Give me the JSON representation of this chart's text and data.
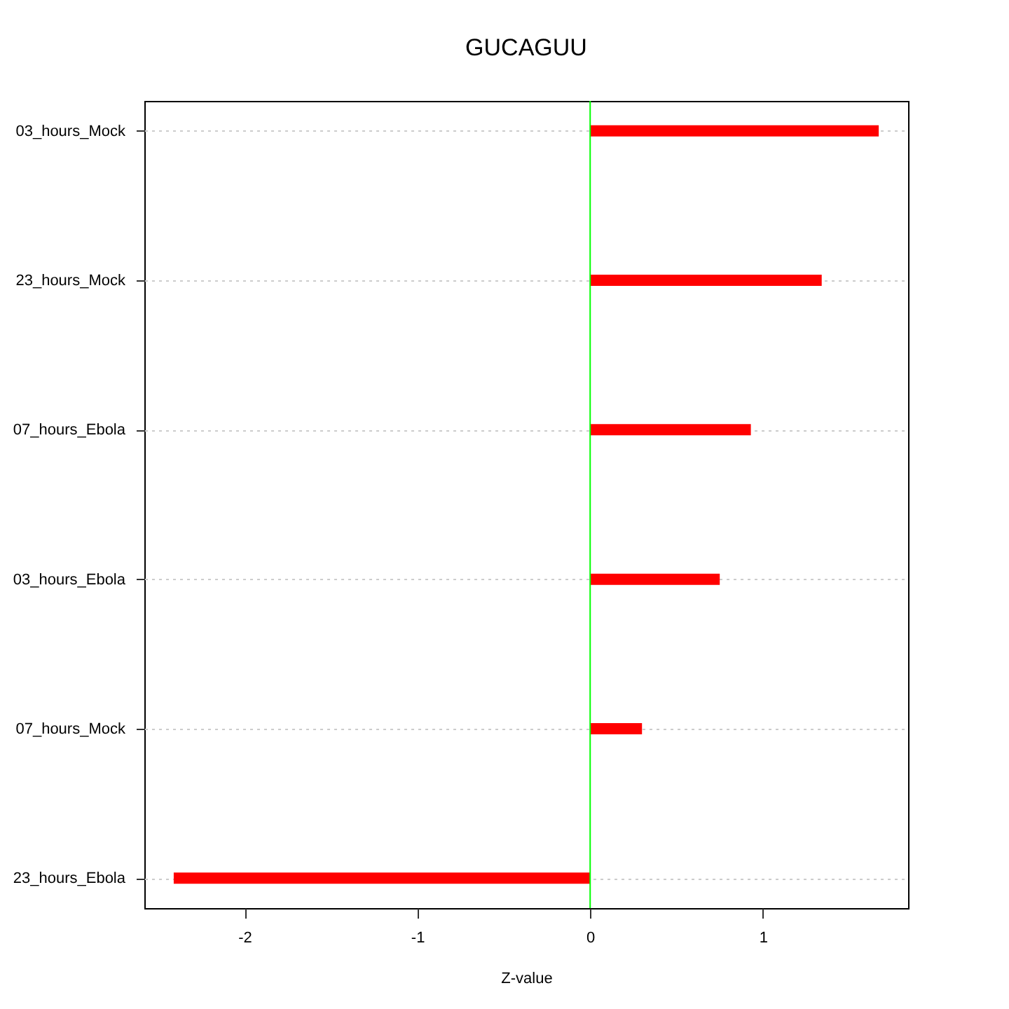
{
  "chart_data": {
    "type": "bar",
    "orientation": "horizontal",
    "title": "GUCAGUU",
    "xlabel": "Z-value",
    "categories": [
      "03_hours_Mock",
      "23_hours_Mock",
      "07_hours_Ebola",
      "03_hours_Ebola",
      "07_hours_Mock",
      "23_hours_Ebola"
    ],
    "values": [
      1.67,
      1.34,
      0.93,
      0.75,
      0.3,
      -2.41
    ],
    "color": "#ff0000",
    "xlim": [
      -2.58,
      1.84
    ],
    "xticks": [
      -2,
      -1,
      0,
      1
    ],
    "grid": "y",
    "ref_lines": [
      {
        "axis": "x",
        "value": 0,
        "color": "#00ff00"
      }
    ]
  }
}
